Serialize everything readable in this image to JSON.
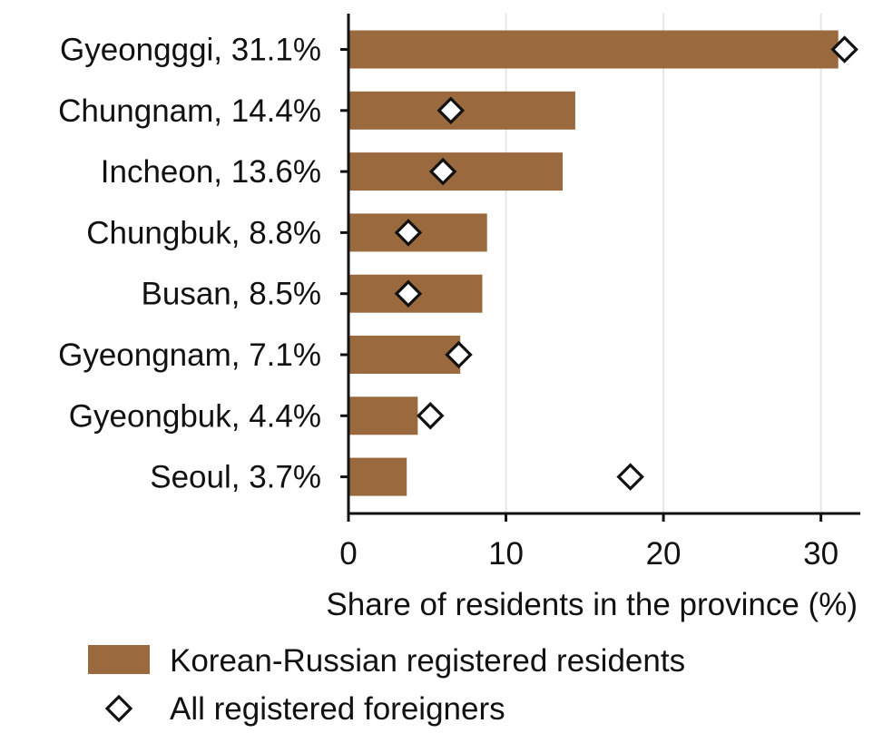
{
  "chart_data": {
    "type": "bar",
    "orientation": "horizontal",
    "categories": [
      "Gyeongggi, 31.1%",
      "Chungnam, 14.4%",
      "Incheon, 13.6%",
      "Chungbuk, 8.8%",
      "Busan, 8.5%",
      "Gyeongnam, 7.1%",
      "Gyeongbuk, 4.4%",
      "Seoul, 3.7%"
    ],
    "series": [
      {
        "name": "Korean-Russian registered residents",
        "mark": "bar",
        "values": [
          31.1,
          14.4,
          13.6,
          8.8,
          8.5,
          7.1,
          4.4,
          3.7
        ]
      },
      {
        "name": "All registered foreigners",
        "mark": "diamond",
        "values": [
          31.5,
          6.5,
          6.0,
          3.8,
          3.8,
          7.0,
          5.2,
          17.9
        ]
      }
    ],
    "xlabel": "Share of residents in the province (%)",
    "ylabel": "",
    "xlim": [
      0,
      32.5
    ],
    "xticks": [
      0,
      10,
      20,
      30
    ],
    "grid": "vertical",
    "legend_position": "bottom",
    "colors": {
      "bar": "#9a693e",
      "diamond_fill": "#ffffff",
      "diamond_stroke": "#111111",
      "grid": "#e6e6e6",
      "axis": "#111111"
    }
  }
}
